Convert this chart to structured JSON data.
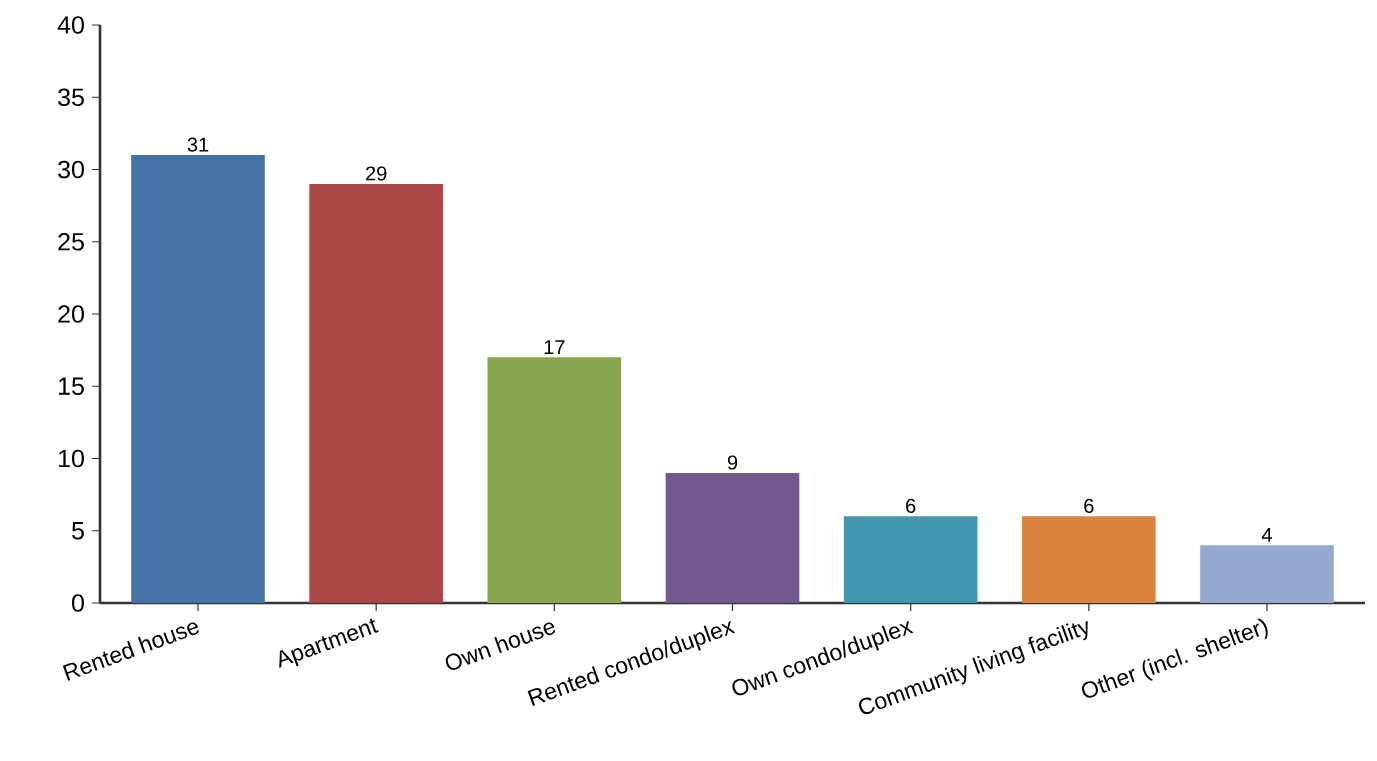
{
  "chart_data": {
    "type": "bar",
    "categories": [
      "Rented house",
      "Apartment",
      "Own house",
      "Rented condo/duplex",
      "Own condo/duplex",
      "Community living facility",
      "Other (incl. shelter)"
    ],
    "values": [
      31,
      29,
      17,
      9,
      6,
      6,
      4
    ],
    "colors": [
      "#4572a7",
      "#aa4643",
      "#89a54e",
      "#71588f",
      "#4198af",
      "#db843d",
      "#93a9cf"
    ],
    "ylim": [
      0,
      40
    ],
    "yticks": [
      0,
      5,
      10,
      15,
      20,
      25,
      30,
      35,
      40
    ],
    "data_labels": true
  }
}
